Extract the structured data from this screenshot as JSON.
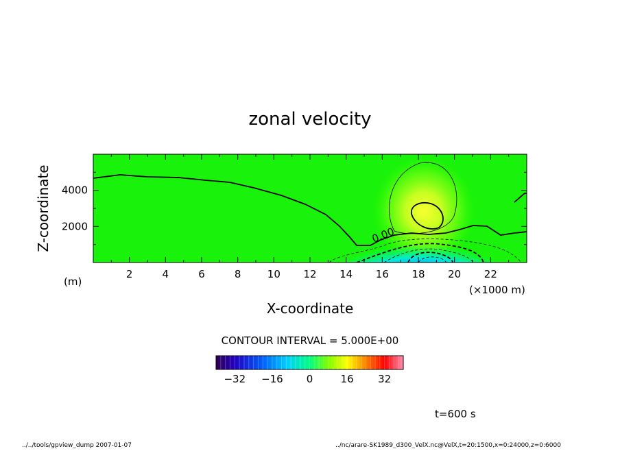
{
  "chart_data": {
    "type": "heatmap",
    "title": "zonal velocity",
    "xlabel": "X-coordinate",
    "ylabel": "Z-coordinate",
    "x_unit": "(×1000 m)",
    "y_unit": "(m)",
    "x_ticks": [
      2,
      4,
      6,
      8,
      10,
      12,
      14,
      16,
      18,
      20,
      22
    ],
    "y_ticks": [
      2000,
      4000
    ],
    "xlim": [
      0,
      24
    ],
    "ylim": [
      0,
      6000
    ],
    "contour_label": "0.00",
    "contour_interval_text": "CONTOUR INTERVAL = 5.000E+00",
    "colorbar": {
      "ticks": [
        -32,
        -16,
        0,
        16,
        32
      ],
      "range": [
        -40,
        40
      ]
    },
    "features": [
      {
        "kind": "positive-max",
        "x": 18.5,
        "z": 2600,
        "value": 14
      },
      {
        "kind": "negative-min",
        "x": 18.5,
        "z": 300,
        "value": -28
      }
    ],
    "grid": false,
    "legend": "colorbar-bottom"
  },
  "time_label": "t=600 s",
  "footer": {
    "left": "../../tools/gpview_dump  2007-01-07",
    "right": "../nc/arare-SK1989_d300_VelX.nc@VelX,t=20:1500,x=0:24000,z=0:6000"
  }
}
